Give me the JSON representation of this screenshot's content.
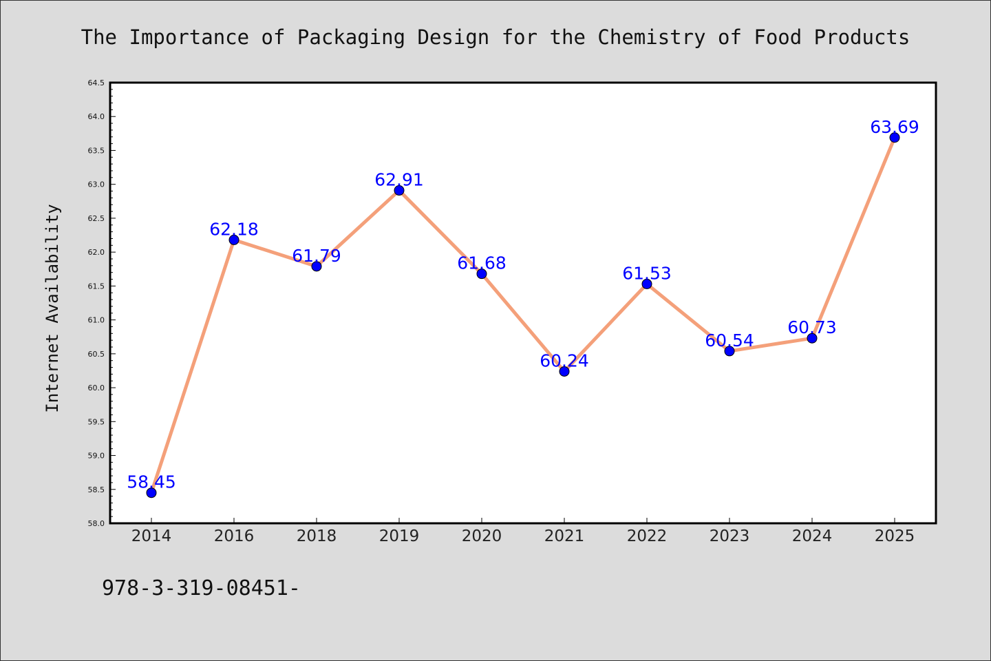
{
  "chart_data": {
    "type": "line",
    "title": "The Importance of Packaging Design for the Chemistry of Food Products",
    "xlabel": "",
    "ylabel": "Internet Availability",
    "categories": [
      "2014",
      "2016",
      "2018",
      "2019",
      "2020",
      "2021",
      "2022",
      "2023",
      "2024",
      "2025"
    ],
    "values": [
      58.45,
      62.18,
      61.79,
      62.91,
      61.68,
      60.24,
      61.53,
      60.54,
      60.73,
      63.69
    ],
    "data_labels": [
      "58.45",
      "62.18",
      "61.79",
      "62.91",
      "61.68",
      "60.24",
      "61.53",
      "60.54",
      "60.73",
      "63.69"
    ],
    "ylim": [
      58.0,
      64.5
    ],
    "yticks": [
      "58.0",
      "58.5",
      "59.0",
      "59.5",
      "60.0",
      "60.5",
      "61.0",
      "61.5",
      "62.0",
      "62.5",
      "63.0",
      "63.5",
      "64.0",
      "64.5"
    ],
    "grid": false,
    "line_color": "#f4a07a",
    "marker_color": "#0000ff",
    "label_color": "#0000ff"
  },
  "footer_text": "978-3-319-08451-"
}
